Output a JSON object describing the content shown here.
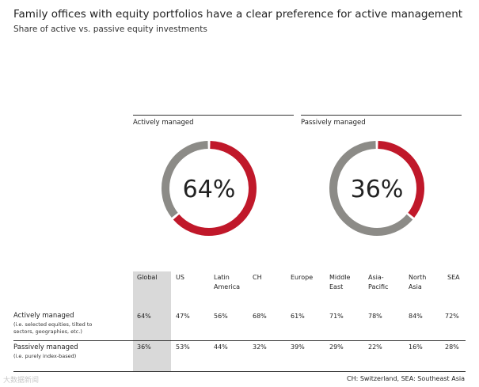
{
  "title": "Family offices with equity portfolios have a clear preference for active management",
  "subtitle": "Share of active vs. passive equity investments",
  "colors": {
    "accent": "#c0182a",
    "track": "#8c8b87",
    "global_bg": "#d9d9d9",
    "rule": "#333333"
  },
  "watermark": "大数据新闻",
  "footnote": "CH: Switzerland, SEA: Southeast Asia",
  "chart_data": [
    {
      "type": "pie",
      "title": "Actively managed",
      "categories": [
        "Actively managed",
        "Passively managed"
      ],
      "values": [
        64,
        36
      ],
      "label": "64%",
      "highlight": "Actively managed"
    },
    {
      "type": "pie",
      "title": "Passively managed",
      "categories": [
        "Passively managed",
        "Actively managed"
      ],
      "values": [
        36,
        64
      ],
      "label": "36%",
      "highlight": "Passively managed"
    },
    {
      "type": "table",
      "columns": [
        "Global",
        "US",
        "Latin\nAmerica",
        "CH",
        "Europe",
        "Middle\nEast",
        "Asia-\nPacific",
        "North\nAsia",
        "SEA"
      ],
      "rows": [
        {
          "label": "Actively managed",
          "sub": "(i.e. selected equities, tilted to\nsectors, geographies, etc.)",
          "values": [
            "64%",
            "47%",
            "56%",
            "68%",
            "61%",
            "71%",
            "78%",
            "84%",
            "72%"
          ]
        },
        {
          "label": "Passively managed",
          "sub": "(i.e. purely index-based)",
          "values": [
            "36%",
            "53%",
            "44%",
            "32%",
            "39%",
            "29%",
            "22%",
            "16%",
            "28%"
          ]
        }
      ]
    }
  ]
}
